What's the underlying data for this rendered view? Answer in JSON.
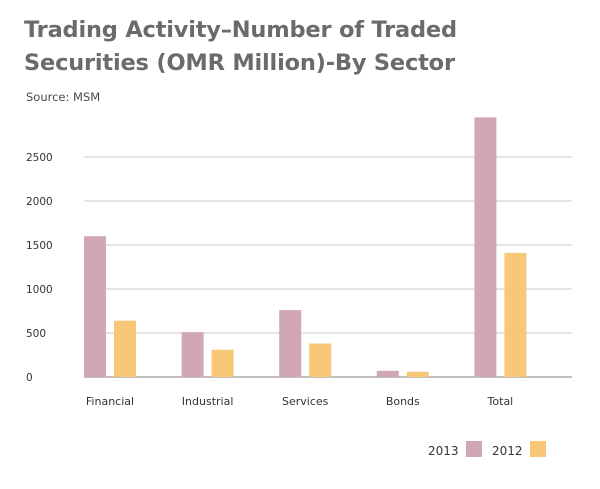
{
  "chart_data": {
    "type": "bar",
    "title": "Trading Activity–Number of Traded Securities (OMR Million)-By Sector",
    "subtitle": "Source: MSM",
    "xlabel": "",
    "ylabel": "",
    "ylim": [
      0,
      3000
    ],
    "yticks": [
      "0",
      "500",
      "1000",
      "1500",
      "2000",
      "2500"
    ],
    "categories": [
      "Financial",
      "Industrial",
      "Services",
      "Bonds",
      "Total"
    ],
    "series": [
      {
        "name": "2013",
        "color": "#d1a7b6",
        "values": [
          1600,
          510,
          760,
          70,
          2950
        ]
      },
      {
        "name": "2012",
        "color": "#f8c778",
        "values": [
          640,
          310,
          380,
          60,
          1410
        ]
      }
    ],
    "grid": true,
    "legend_position": "bottom-right"
  }
}
